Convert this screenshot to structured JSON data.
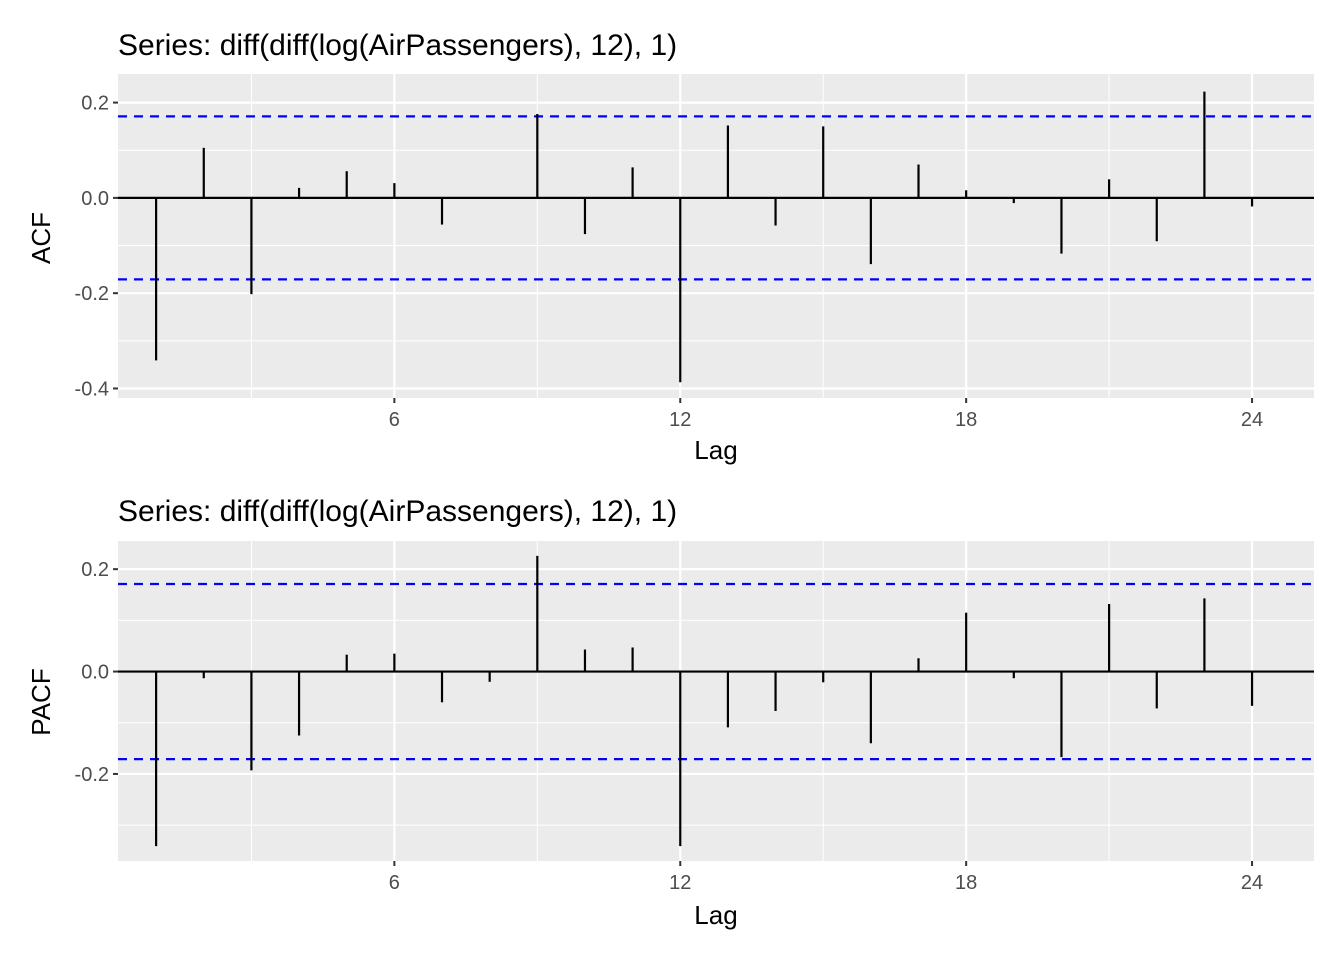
{
  "chart_data": [
    {
      "type": "bar",
      "title": "Series: diff(diff(log(AirPassengers), 12), 1)",
      "xlabel": "Lag",
      "ylabel": "ACF",
      "x": [
        1,
        2,
        3,
        4,
        5,
        6,
        7,
        8,
        9,
        10,
        11,
        12,
        13,
        14,
        15,
        16,
        17,
        18,
        19,
        20,
        21,
        22,
        23,
        24
      ],
      "values": [
        -0.341,
        0.105,
        -0.202,
        0.021,
        0.056,
        0.031,
        -0.056,
        -0.001,
        0.176,
        -0.076,
        0.064,
        -0.387,
        0.152,
        -0.058,
        0.15,
        -0.139,
        0.07,
        0.016,
        -0.011,
        -0.117,
        0.039,
        -0.091,
        0.223,
        -0.018
      ],
      "ci": [
        0.171,
        -0.171
      ],
      "xlim": [
        0.2,
        25.3
      ],
      "ylim": [
        -0.42,
        0.26
      ],
      "xticks": [
        6,
        12,
        18,
        24
      ],
      "xtick_labels": [
        "6",
        "12",
        "18",
        "24"
      ],
      "yticks": [
        -0.4,
        -0.2,
        0.0,
        0.2
      ],
      "ytick_labels": [
        "-0.4",
        "-0.2",
        "0.0",
        "0.2"
      ],
      "grid": true,
      "colors": {
        "panel": "#ebebeb",
        "grid": "#ffffff",
        "bar": "#000000",
        "ci": "#0000ff"
      }
    },
    {
      "type": "bar",
      "title": "Series: diff(diff(log(AirPassengers), 12), 1)",
      "xlabel": "Lag",
      "ylabel": "PACF",
      "x": [
        1,
        2,
        3,
        4,
        5,
        6,
        7,
        8,
        9,
        10,
        11,
        12,
        13,
        14,
        15,
        16,
        17,
        18,
        19,
        20,
        21,
        22,
        23,
        24
      ],
      "values": [
        -0.341,
        -0.013,
        -0.193,
        -0.125,
        0.033,
        0.035,
        -0.06,
        -0.02,
        0.226,
        0.043,
        0.047,
        -0.341,
        -0.109,
        -0.077,
        -0.021,
        -0.14,
        0.026,
        0.115,
        -0.013,
        -0.167,
        0.132,
        -0.072,
        0.143,
        -0.067
      ],
      "ci": [
        0.171,
        -0.171
      ],
      "xlim": [
        0.2,
        25.3
      ],
      "ylim": [
        -0.37,
        0.255
      ],
      "xticks": [
        6,
        12,
        18,
        24
      ],
      "xtick_labels": [
        "6",
        "12",
        "18",
        "24"
      ],
      "yticks": [
        -0.2,
        0.0,
        0.2
      ],
      "ytick_labels": [
        "-0.2",
        "0.0",
        "0.2"
      ],
      "grid": true,
      "colors": {
        "panel": "#ebebeb",
        "grid": "#ffffff",
        "bar": "#000000",
        "ci": "#0000ff"
      }
    }
  ]
}
